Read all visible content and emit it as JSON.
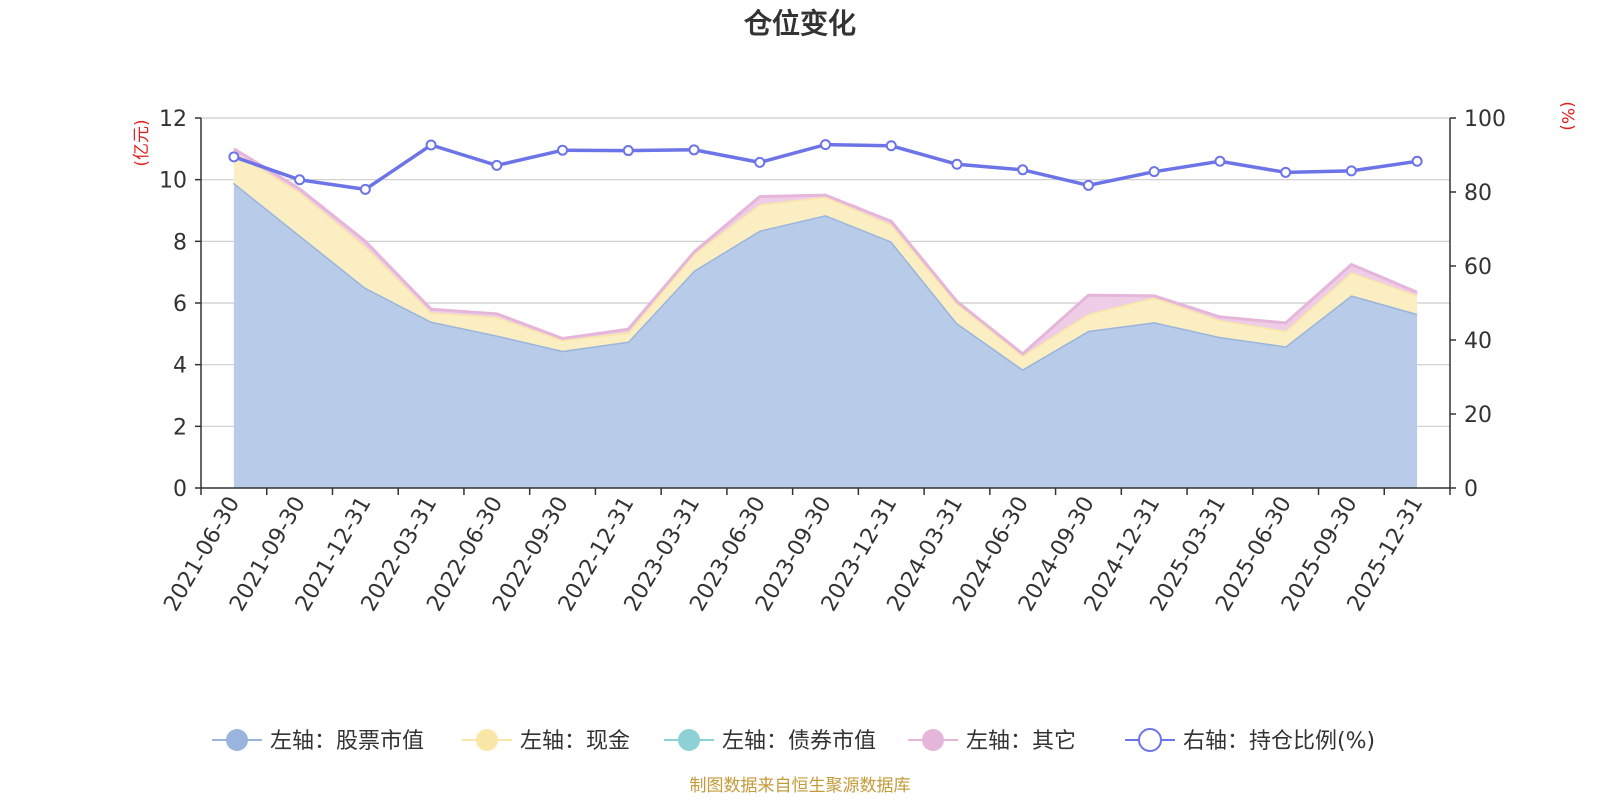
{
  "chart_data": {
    "type": "area",
    "title": "仓位变化",
    "left_unit": "(亿元)",
    "right_unit": "(%)",
    "categories": [
      "2021-06-30",
      "2021-09-30",
      "2021-12-31",
      "2022-03-31",
      "2022-06-30",
      "2022-09-30",
      "2022-12-31",
      "2023-03-31",
      "2023-06-30",
      "2023-09-30",
      "2023-12-31",
      "2024-03-31",
      "2024-06-30",
      "2024-09-30",
      "2024-12-31",
      "2025-03-31",
      "2025-06-30",
      "2025-09-30",
      "2025-12-31"
    ],
    "left_axis": {
      "min": 0,
      "max": 12,
      "ticks": [
        0,
        2,
        4,
        6,
        8,
        10,
        12
      ]
    },
    "right_axis": {
      "min": 0,
      "max": 100,
      "ticks": [
        0,
        20,
        40,
        60,
        80,
        100
      ]
    },
    "stacked_series": [
      {
        "name": "左轴：股票市值",
        "color": "#9ab5dd",
        "fill": "#b8cbe8",
        "values": [
          9.9,
          8.2,
          6.5,
          5.4,
          4.95,
          4.45,
          4.75,
          7.05,
          8.35,
          8.85,
          8.0,
          5.35,
          3.85,
          5.1,
          5.38,
          4.9,
          4.6,
          6.25,
          5.65
        ]
      },
      {
        "name": "左轴：现金",
        "color": "#f8e7a7",
        "fill": "#faeec2",
        "values": [
          1.0,
          1.4,
          1.35,
          0.3,
          0.6,
          0.35,
          0.3,
          0.55,
          0.85,
          0.6,
          0.55,
          0.65,
          0.45,
          0.55,
          0.8,
          0.55,
          0.5,
          0.75,
          0.6
        ]
      },
      {
        "name": "左轴：债券市值",
        "color": "#8dd0d6",
        "fill": "#a8dde1",
        "values": [
          0,
          0,
          0,
          0,
          0,
          0,
          0,
          0,
          0,
          0,
          0,
          0,
          0,
          0,
          0,
          0,
          0,
          0,
          0
        ]
      },
      {
        "name": "左轴：其它",
        "color": "#e5b6da",
        "fill": "#efcde6",
        "values": [
          0.1,
          0.1,
          0.15,
          0.1,
          0.1,
          0.05,
          0.1,
          0.05,
          0.25,
          0.05,
          0.1,
          0.05,
          0.05,
          0.6,
          0.05,
          0.1,
          0.25,
          0.25,
          0.1
        ]
      }
    ],
    "line_series": {
      "name": "右轴：持仓比例(%)",
      "color": "#6c74e8",
      "values": [
        89.5,
        83.3,
        80.7,
        92.7,
        87.2,
        91.3,
        91.2,
        91.4,
        88.0,
        92.8,
        92.5,
        87.5,
        86.0,
        81.8,
        85.5,
        88.3,
        85.3,
        85.7,
        88.3
      ]
    },
    "grid": true,
    "legend_position": "bottom"
  },
  "source": {
    "text": "制图数据来自恒生聚源数据库",
    "color": "#c49a3a"
  }
}
